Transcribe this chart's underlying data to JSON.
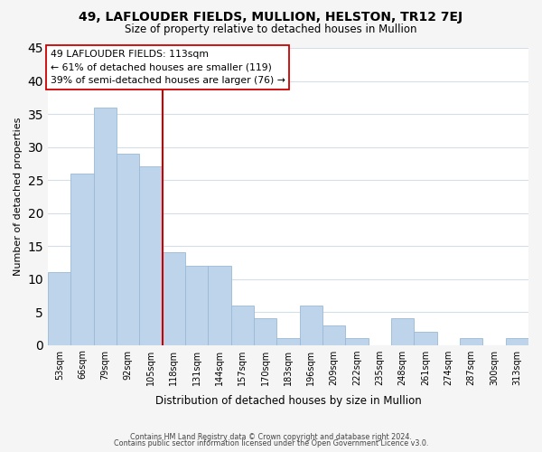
{
  "title": "49, LAFLOUDER FIELDS, MULLION, HELSTON, TR12 7EJ",
  "subtitle": "Size of property relative to detached houses in Mullion",
  "xlabel": "Distribution of detached houses by size in Mullion",
  "ylabel": "Number of detached properties",
  "footer_line1": "Contains HM Land Registry data © Crown copyright and database right 2024.",
  "footer_line2": "Contains public sector information licensed under the Open Government Licence v3.0.",
  "bar_labels": [
    "53sqm",
    "66sqm",
    "79sqm",
    "92sqm",
    "105sqm",
    "118sqm",
    "131sqm",
    "144sqm",
    "157sqm",
    "170sqm",
    "183sqm",
    "196sqm",
    "209sqm",
    "222sqm",
    "235sqm",
    "248sqm",
    "261sqm",
    "274sqm",
    "287sqm",
    "300sqm",
    "313sqm"
  ],
  "bar_values": [
    11,
    26,
    36,
    29,
    27,
    14,
    12,
    12,
    6,
    4,
    1,
    6,
    3,
    1,
    0,
    4,
    2,
    0,
    1,
    0,
    1
  ],
  "bar_color": "#bdd4ea",
  "bar_edge_color": "#9bbad6",
  "vline_color": "#cc0000",
  "annotation_title": "49 LAFLOUDER FIELDS: 113sqm",
  "annotation_line1": "← 61% of detached houses are smaller (119)",
  "annotation_line2": "39% of semi-detached houses are larger (76) →",
  "annotation_box_facecolor": "#ffffff",
  "annotation_box_edgecolor": "#cc0000",
  "ylim": [
    0,
    45
  ],
  "yticks": [
    0,
    5,
    10,
    15,
    20,
    25,
    30,
    35,
    40,
    45
  ],
  "fig_bg_color": "#f5f5f5",
  "plot_bg_color": "#ffffff",
  "grid_color": "#d5dde8"
}
